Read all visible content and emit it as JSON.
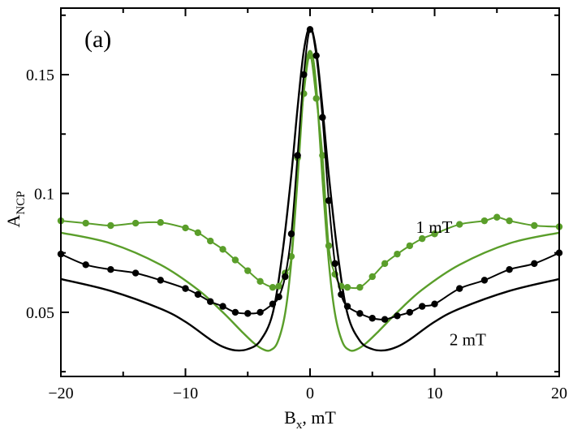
{
  "chart_data": {
    "type": "scatter",
    "title": "",
    "panel_label": "(a)",
    "xlabel": {
      "main": "B",
      "sub": "x",
      "suffix": ", mT"
    },
    "ylabel": {
      "main": "A",
      "sub": "NCP"
    },
    "xlim": [
      -20,
      20
    ],
    "ylim": [
      0.023,
      0.178
    ],
    "xticks": [
      -20,
      -10,
      0,
      10,
      20
    ],
    "xtick_labels": [
      "−20",
      "−10",
      "0",
      "10",
      "20"
    ],
    "yticks": [
      0.05,
      0.1,
      0.15
    ],
    "ytick_labels": [
      "0.05",
      "0.1",
      "0.15"
    ],
    "grid": false,
    "annotations": [
      {
        "text": "1 mT",
        "x": 8.5,
        "y": 0.0835,
        "series": "1 mT"
      },
      {
        "text": "2 mT",
        "x": 11.2,
        "y": 0.0362,
        "series": "2 mT"
      }
    ],
    "series": [
      {
        "name": "1 mT",
        "kind": "measured",
        "color": "#5a9e2a",
        "x": [
          -20,
          -18,
          -16,
          -14,
          -12,
          -10,
          -9,
          -8,
          -7,
          -6,
          -5,
          -4,
          -3,
          -2.5,
          -2,
          -1.5,
          -1,
          -0.5,
          0,
          0.5,
          1,
          1.5,
          2,
          2.5,
          3,
          4,
          5,
          6,
          7,
          8,
          9,
          10,
          12,
          14,
          15,
          16,
          18,
          20
        ],
        "y": [
          0.0885,
          0.0875,
          0.0865,
          0.0875,
          0.0878,
          0.0855,
          0.0835,
          0.08,
          0.0765,
          0.072,
          0.0675,
          0.063,
          0.0605,
          0.061,
          0.0665,
          0.0735,
          0.115,
          0.142,
          0.158,
          0.14,
          0.116,
          0.078,
          0.066,
          0.061,
          0.0605,
          0.0605,
          0.065,
          0.0705,
          0.0745,
          0.078,
          0.081,
          0.083,
          0.087,
          0.0885,
          0.09,
          0.0885,
          0.0865,
          0.086
        ]
      },
      {
        "name": "2 mT",
        "kind": "measured",
        "color": "#000000",
        "x": [
          -20,
          -18,
          -16,
          -14,
          -12,
          -10,
          -9,
          -8,
          -7,
          -6,
          -5,
          -4,
          -3,
          -2.5,
          -2,
          -1.5,
          -1,
          -0.5,
          0,
          0.5,
          1,
          1.5,
          2,
          2.5,
          3,
          4,
          5,
          6,
          7,
          8,
          9,
          10,
          12,
          14,
          16,
          18,
          20
        ],
        "y": [
          0.0745,
          0.07,
          0.068,
          0.0665,
          0.0635,
          0.06,
          0.0575,
          0.0545,
          0.0525,
          0.05,
          0.0495,
          0.05,
          0.0535,
          0.0565,
          0.065,
          0.083,
          0.116,
          0.15,
          0.169,
          0.158,
          0.132,
          0.097,
          0.0705,
          0.0575,
          0.0525,
          0.0495,
          0.0475,
          0.047,
          0.0485,
          0.05,
          0.0525,
          0.0535,
          0.06,
          0.0635,
          0.068,
          0.0705,
          0.075
        ]
      },
      {
        "name": "1 mT fit",
        "kind": "fit",
        "color": "#5a9e2a",
        "x": [
          -20,
          -16,
          -12,
          -9,
          -7,
          -5.5,
          -4.5,
          -3.8,
          -3.2,
          -2.6,
          -2,
          -1.5,
          -1,
          -0.6,
          -0.3,
          0,
          0.3,
          0.6,
          1,
          1.5,
          2,
          2.6,
          3.2,
          3.8,
          4.5,
          5.5,
          7,
          9,
          12,
          16,
          20
        ],
        "y": [
          0.0835,
          0.079,
          0.07,
          0.0595,
          0.05,
          0.042,
          0.037,
          0.0345,
          0.034,
          0.0375,
          0.0495,
          0.0715,
          0.106,
          0.138,
          0.155,
          0.16,
          0.155,
          0.138,
          0.106,
          0.0715,
          0.0495,
          0.0375,
          0.034,
          0.0345,
          0.037,
          0.042,
          0.05,
          0.0595,
          0.07,
          0.079,
          0.0835
        ]
      },
      {
        "name": "2 mT fit",
        "kind": "fit",
        "color": "#000000",
        "x": [
          -20,
          -16,
          -12,
          -10,
          -8,
          -7,
          -6,
          -5,
          -4,
          -3,
          -2.2,
          -1.5,
          -1,
          -0.5,
          0,
          0.5,
          1,
          1.5,
          2.2,
          3,
          4,
          5,
          6,
          7,
          8,
          10,
          12,
          16,
          20
        ],
        "y": [
          0.064,
          0.059,
          0.0515,
          0.046,
          0.0385,
          0.0355,
          0.034,
          0.0345,
          0.038,
          0.0495,
          0.0755,
          0.108,
          0.136,
          0.16,
          0.17,
          0.16,
          0.136,
          0.108,
          0.0755,
          0.0495,
          0.038,
          0.0345,
          0.034,
          0.0355,
          0.0385,
          0.046,
          0.0515,
          0.059,
          0.064
        ]
      }
    ]
  }
}
